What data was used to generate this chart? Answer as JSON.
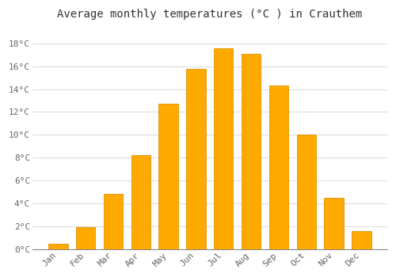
{
  "title": "Average monthly temperatures (°C ) in Crauthem",
  "months": [
    "Jan",
    "Feb",
    "Mar",
    "Apr",
    "May",
    "Jun",
    "Jul",
    "Aug",
    "Sep",
    "Oct",
    "Nov",
    "Dec"
  ],
  "values": [
    0.5,
    1.9,
    4.8,
    8.2,
    12.7,
    15.8,
    17.6,
    17.1,
    14.3,
    10.0,
    4.5,
    1.6
  ],
  "bar_color": "#FFAA00",
  "bar_edge_color": "#E09000",
  "ylim": [
    0,
    19.5
  ],
  "yticks": [
    0,
    2,
    4,
    6,
    8,
    10,
    12,
    14,
    16,
    18
  ],
  "ytick_labels": [
    "0°C",
    "2°C",
    "4°C",
    "6°C",
    "8°C",
    "10°C",
    "12°C",
    "14°C",
    "16°C",
    "18°C"
  ],
  "background_color": "#FFFFFF",
  "grid_color": "#DDDDDD",
  "title_fontsize": 10,
  "tick_fontsize": 8,
  "font_family": "monospace",
  "bar_width": 0.7
}
